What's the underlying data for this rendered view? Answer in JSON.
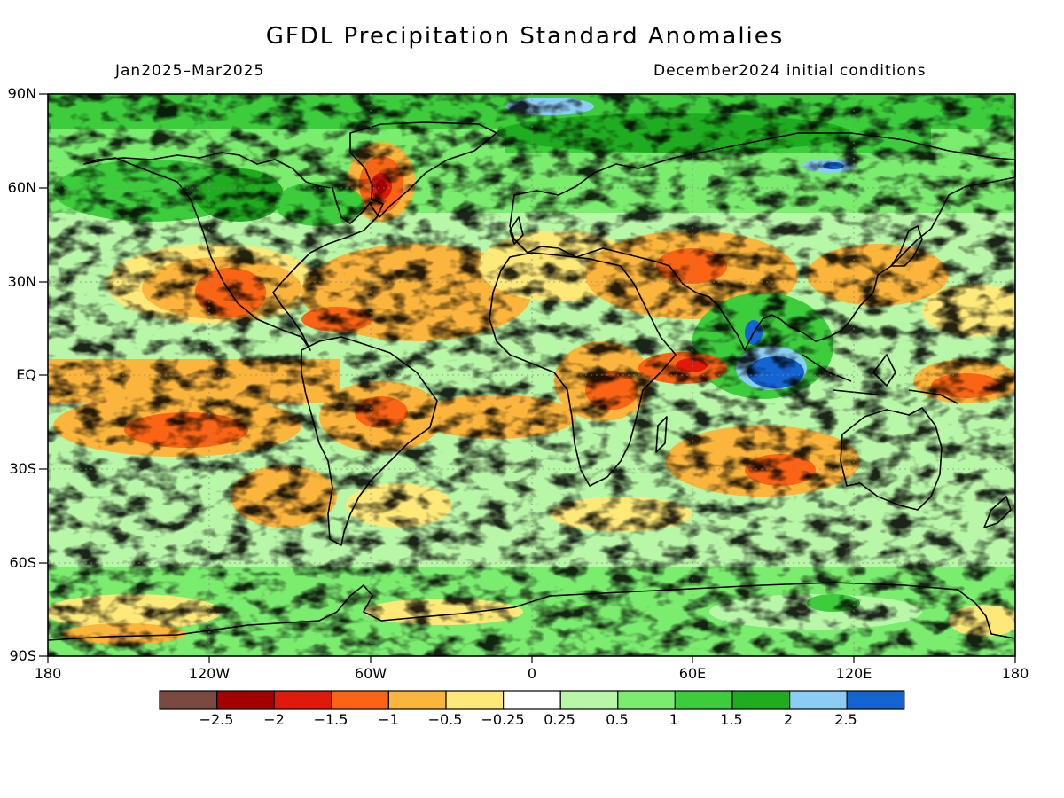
{
  "title": "GFDL Precipitation Standard Anomalies",
  "period": "Jan2025–Mar2025",
  "initial_conditions": "December2024 initial conditions",
  "lat_labels": [
    "90N",
    "60N",
    "30N",
    "EQ",
    "30S",
    "60S",
    "90S"
  ],
  "lon_labels": [
    "180",
    "120W",
    "60W",
    "0",
    "60E",
    "120E",
    "180"
  ],
  "colorbar": {
    "colors": [
      "#7a4a40",
      "#a30000",
      "#e01a0a",
      "#fa6414",
      "#fbb43c",
      "#fde878",
      "#ffffff",
      "#b9f7a8",
      "#7aec6e",
      "#3ccc3c",
      "#20ac20",
      "#8ccdf5",
      "#1464d2"
    ],
    "labels": [
      "−2.5",
      "−2",
      "−1.5",
      "−1",
      "−0.5",
      "−0.25",
      "0.25",
      "0.5",
      "1",
      "1.5",
      "2",
      "2.5"
    ]
  }
}
